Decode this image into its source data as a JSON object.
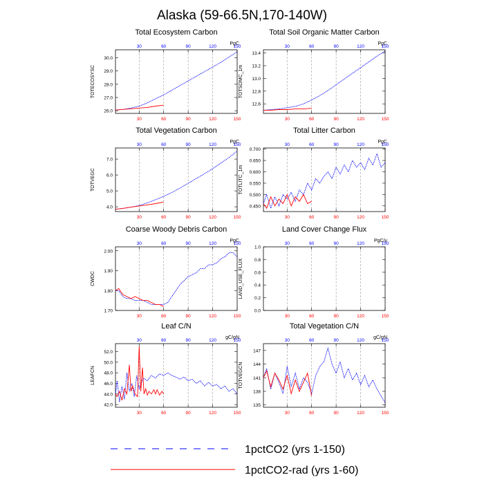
{
  "page_title": "Alaska (59-66.5N,170-140W)",
  "colors": {
    "series_150": "#0000ff",
    "series_60": "#ff0000",
    "grid": "#999999",
    "axis": "#000000"
  },
  "legend": [
    {
      "label": "1pctCO2 (yrs 1-150)",
      "color": "#0000ff",
      "dash": "dashed"
    },
    {
      "label": "1pctCO2-rad (yrs 1-60)",
      "color": "#ff0000",
      "dash": "solid"
    }
  ],
  "chart_data": [
    {
      "type": "line",
      "title": "Total Ecosystem Carbon",
      "ylabel": "TOTECOSYSC",
      "units": "PgC",
      "xlim": [
        1,
        150
      ],
      "xticks": [
        30,
        60,
        90,
        120,
        150
      ],
      "grid_x": [
        30,
        60,
        90,
        120
      ],
      "ylim": [
        25.8,
        30.6
      ],
      "yticks": [
        "26.0",
        "27.0",
        "28.0",
        "29.0",
        "30.0"
      ],
      "series": [
        {
          "color": "#0000ff",
          "x": [
            1,
            10,
            20,
            30,
            40,
            50,
            60,
            70,
            80,
            90,
            100,
            110,
            120,
            130,
            140,
            150
          ],
          "y": [
            26.05,
            26.1,
            26.2,
            26.35,
            26.6,
            26.9,
            27.2,
            27.55,
            27.9,
            28.25,
            28.6,
            28.95,
            29.3,
            29.65,
            30.05,
            30.45
          ]
        },
        {
          "color": "#ff0000",
          "x": [
            1,
            10,
            20,
            30,
            40,
            50,
            60
          ],
          "y": [
            26.05,
            26.1,
            26.15,
            26.2,
            26.25,
            26.35,
            26.42
          ]
        }
      ]
    },
    {
      "type": "line",
      "title": "Total Soil Organic Matter Carbon",
      "ylabel": "TOTSOMC_1m",
      "units": "PgC",
      "xlim": [
        1,
        150
      ],
      "xticks": [
        30,
        60,
        90,
        120,
        150
      ],
      "grid_x": [
        30,
        60,
        90,
        120
      ],
      "ylim": [
        12.45,
        13.45
      ],
      "yticks": [
        "12.6",
        "12.8",
        "13.0",
        "13.2",
        "13.4"
      ],
      "series": [
        {
          "color": "#0000ff",
          "x": [
            1,
            10,
            20,
            30,
            40,
            50,
            60,
            70,
            80,
            90,
            100,
            110,
            120,
            130,
            140,
            150
          ],
          "y": [
            12.5,
            12.51,
            12.52,
            12.54,
            12.56,
            12.6,
            12.66,
            12.73,
            12.81,
            12.9,
            12.99,
            13.08,
            13.17,
            13.26,
            13.35,
            13.43
          ]
        },
        {
          "color": "#ff0000",
          "x": [
            1,
            10,
            20,
            30,
            40,
            50,
            60
          ],
          "y": [
            12.5,
            12.5,
            12.51,
            12.51,
            12.52,
            12.52,
            12.53
          ]
        }
      ]
    },
    {
      "type": "line",
      "title": "Total Vegetation Carbon",
      "ylabel": "TOTVEGC",
      "units": "PgC",
      "xlim": [
        1,
        150
      ],
      "xticks": [
        30,
        60,
        90,
        120,
        150
      ],
      "grid_x": [
        30,
        60,
        90,
        120
      ],
      "ylim": [
        3.7,
        7.7
      ],
      "yticks": [
        "4.0",
        "5.0",
        "6.0",
        "7.0"
      ],
      "series": [
        {
          "color": "#0000ff",
          "x": [
            1,
            10,
            20,
            30,
            40,
            50,
            60,
            70,
            80,
            90,
            100,
            110,
            120,
            130,
            140,
            150
          ],
          "y": [
            3.85,
            3.9,
            3.98,
            4.08,
            4.25,
            4.45,
            4.65,
            4.9,
            5.18,
            5.48,
            5.78,
            6.08,
            6.4,
            6.75,
            7.1,
            7.5
          ]
        },
        {
          "color": "#ff0000",
          "x": [
            1,
            10,
            20,
            30,
            40,
            50,
            60
          ],
          "y": [
            3.85,
            3.9,
            3.98,
            4.05,
            4.12,
            4.2,
            4.3
          ]
        }
      ]
    },
    {
      "type": "line",
      "title": "Total Litter Carbon",
      "ylabel": "TOTLITC_1m",
      "units": "PgC",
      "xlim": [
        1,
        150
      ],
      "xticks": [
        30,
        60,
        90,
        120,
        150
      ],
      "grid_x": [
        30,
        60,
        90,
        120
      ],
      "ylim": [
        0.425,
        0.705
      ],
      "yticks": [
        "0.450",
        "0.500",
        "0.550",
        "0.600",
        "0.650",
        "0.700"
      ],
      "series": [
        {
          "color": "#0000ff",
          "x": [
            1,
            5,
            10,
            15,
            20,
            25,
            30,
            35,
            40,
            45,
            50,
            55,
            60,
            65,
            70,
            75,
            80,
            85,
            90,
            95,
            100,
            105,
            110,
            115,
            120,
            125,
            130,
            135,
            140,
            145,
            150
          ],
          "y": [
            0.46,
            0.5,
            0.44,
            0.49,
            0.45,
            0.5,
            0.48,
            0.51,
            0.47,
            0.52,
            0.5,
            0.55,
            0.52,
            0.57,
            0.55,
            0.58,
            0.6,
            0.57,
            0.62,
            0.59,
            0.63,
            0.6,
            0.65,
            0.62,
            0.64,
            0.61,
            0.66,
            0.63,
            0.68,
            0.62,
            0.64
          ]
        },
        {
          "color": "#ff0000",
          "x": [
            1,
            5,
            10,
            15,
            20,
            25,
            30,
            35,
            40,
            45,
            50,
            55,
            60
          ],
          "y": [
            0.46,
            0.44,
            0.49,
            0.45,
            0.48,
            0.46,
            0.5,
            0.45,
            0.49,
            0.47,
            0.5,
            0.46,
            0.47
          ]
        }
      ]
    },
    {
      "type": "line",
      "title": "Coarse Woody Debris Carbon",
      "ylabel": "CWDC",
      "units": "PgC",
      "xlim": [
        1,
        150
      ],
      "xticks": [
        30,
        60,
        90,
        120,
        150
      ],
      "grid_x": [
        30,
        60,
        90,
        120
      ],
      "ylim": [
        1.7,
        2.02
      ],
      "yticks": [
        "1.70",
        "1.80",
        "1.90",
        "2.00"
      ],
      "series": [
        {
          "color": "#0000ff",
          "x": [
            1,
            5,
            10,
            15,
            20,
            25,
            30,
            35,
            40,
            45,
            50,
            55,
            60,
            65,
            70,
            75,
            80,
            85,
            90,
            95,
            100,
            105,
            110,
            115,
            120,
            125,
            130,
            135,
            140,
            145,
            150
          ],
          "y": [
            1.8,
            1.8,
            1.77,
            1.76,
            1.76,
            1.75,
            1.75,
            1.75,
            1.74,
            1.73,
            1.73,
            1.73,
            1.73,
            1.74,
            1.77,
            1.8,
            1.83,
            1.85,
            1.87,
            1.88,
            1.89,
            1.91,
            1.91,
            1.93,
            1.93,
            1.94,
            1.96,
            1.97,
            1.99,
            1.99,
            1.97
          ]
        },
        {
          "color": "#ff0000",
          "x": [
            1,
            5,
            10,
            15,
            20,
            25,
            30,
            35,
            40,
            45,
            50,
            55,
            60
          ],
          "y": [
            1.8,
            1.81,
            1.78,
            1.77,
            1.76,
            1.77,
            1.76,
            1.75,
            1.75,
            1.74,
            1.73,
            1.73,
            1.72
          ]
        }
      ]
    },
    {
      "type": "line",
      "title": "Land Cover Change Flux",
      "ylabel": "LAND_USE_FLUX",
      "units": "PgC/y",
      "xlim": [
        1,
        150
      ],
      "xticks": [
        30,
        60,
        90,
        120,
        150
      ],
      "grid_x": [
        30,
        60,
        90,
        120
      ],
      "ylim": [
        0,
        1
      ],
      "yticks": [
        "0.0",
        "0.2",
        "0.4",
        "0.6",
        "0.8",
        "1.0"
      ],
      "series": []
    },
    {
      "type": "line",
      "title": "Leaf C/N",
      "ylabel": "LEAFCN",
      "units": "gC/gN",
      "xlim": [
        1,
        150
      ],
      "xticks": [
        30,
        60,
        90,
        120,
        150
      ],
      "grid_x": [
        30,
        60,
        90,
        120
      ],
      "ylim": [
        41.5,
        53.5
      ],
      "yticks": [
        "42.0",
        "44.0",
        "46.0",
        "48.0",
        "50.0",
        "52.0"
      ],
      "series": [
        {
          "color": "#0000ff",
          "x": [
            1,
            3,
            6,
            9,
            12,
            15,
            18,
            21,
            24,
            27,
            30,
            35,
            40,
            45,
            50,
            55,
            60,
            65,
            70,
            75,
            80,
            85,
            90,
            95,
            100,
            105,
            110,
            115,
            120,
            125,
            130,
            135,
            140,
            145,
            150
          ],
          "y": [
            44.0,
            46.5,
            42.5,
            45.5,
            43.0,
            48.0,
            44.5,
            46.0,
            43.5,
            47.5,
            45.0,
            47.0,
            46.5,
            47.5,
            47.0,
            47.8,
            47.5,
            48.0,
            47.5,
            47.2,
            46.8,
            47.2,
            46.5,
            46.8,
            46.0,
            46.5,
            45.5,
            46.2,
            45.5,
            45.8,
            45.0,
            45.5,
            44.5,
            45.0,
            44.0
          ]
        },
        {
          "color": "#ff0000",
          "x": [
            1,
            3,
            6,
            9,
            12,
            15,
            18,
            20,
            22,
            25,
            28,
            30,
            32,
            34,
            36,
            38,
            40,
            42,
            45,
            48,
            50,
            52,
            55,
            58,
            60
          ],
          "y": [
            44.0,
            43.5,
            44.5,
            42.8,
            45.0,
            44.0,
            49.5,
            44.5,
            45.5,
            44.0,
            43.5,
            53.0,
            44.5,
            49.0,
            44.0,
            45.0,
            43.8,
            44.5,
            44.0,
            44.8,
            44.0,
            44.8,
            43.8,
            44.5,
            44.0
          ]
        }
      ]
    },
    {
      "type": "line",
      "title": "Total Vegetation C/N",
      "ylabel": "TOTVEGCN",
      "units": "gC/gN",
      "xlim": [
        1,
        150
      ],
      "xticks": [
        30,
        60,
        90,
        120,
        150
      ],
      "grid_x": [
        30,
        60,
        90,
        120
      ],
      "ylim": [
        134.5,
        148.5
      ],
      "yticks": [
        "135",
        "138",
        "141",
        "144",
        "147"
      ],
      "series": [
        {
          "color": "#0000ff",
          "x": [
            1,
            5,
            10,
            15,
            20,
            25,
            30,
            35,
            40,
            45,
            50,
            55,
            60,
            65,
            70,
            75,
            80,
            85,
            90,
            95,
            100,
            105,
            110,
            115,
            120,
            125,
            130,
            135,
            140,
            145,
            150
          ],
          "y": [
            141.0,
            143.0,
            138.5,
            142.0,
            140.0,
            137.5,
            143.5,
            139.0,
            142.0,
            138.5,
            141.0,
            140.0,
            137.5,
            141.5,
            143.5,
            144.5,
            147.5,
            144.0,
            142.0,
            144.5,
            141.0,
            143.0,
            140.5,
            142.0,
            139.5,
            141.5,
            139.0,
            140.5,
            138.5,
            137.0,
            135.5
          ]
        },
        {
          "color": "#ff0000",
          "x": [
            1,
            5,
            10,
            15,
            20,
            25,
            30,
            35,
            40,
            45,
            50,
            55,
            60
          ],
          "y": [
            141.0,
            142.5,
            139.0,
            142.0,
            140.5,
            138.5,
            141.5,
            137.5,
            140.5,
            138.0,
            140.0,
            142.0,
            137.0
          ]
        }
      ]
    }
  ]
}
